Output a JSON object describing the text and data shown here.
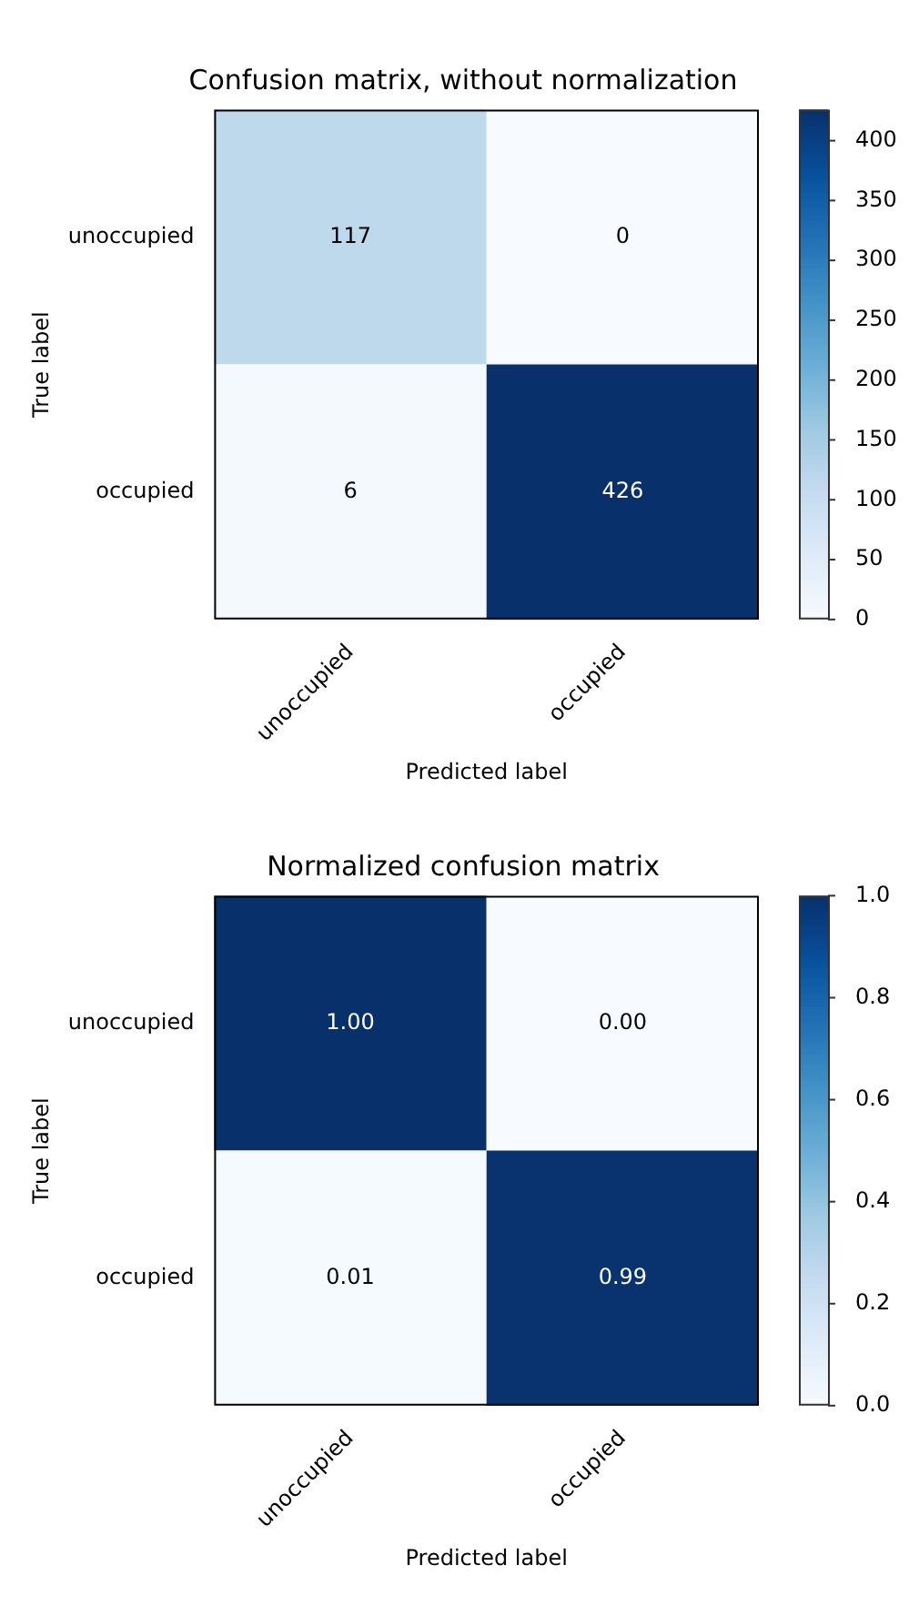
{
  "chart_data": [
    {
      "type": "heatmap",
      "title": "Confusion matrix, without normalization",
      "xlabel": "Predicted label",
      "ylabel": "True label",
      "categories": [
        "unoccupied",
        "occupied"
      ],
      "y_categories": [
        "unoccupied",
        "occupied"
      ],
      "cells": [
        [
          117,
          0
        ],
        [
          6,
          426
        ]
      ],
      "data_labels": true,
      "clim": [
        0,
        426
      ],
      "cticks": [
        0,
        50,
        100,
        150,
        200,
        250,
        300,
        350,
        400
      ]
    },
    {
      "type": "heatmap",
      "title": "Normalized confusion matrix",
      "xlabel": "Predicted label",
      "ylabel": "True label",
      "categories": [
        "unoccupied",
        "occupied"
      ],
      "y_categories": [
        "unoccupied",
        "occupied"
      ],
      "cells": [
        [
          1.0,
          0.0
        ],
        [
          0.01,
          0.99
        ]
      ],
      "cell_labels": [
        [
          "1.00",
          "0.00"
        ],
        [
          "0.01",
          "0.99"
        ]
      ],
      "clim": [
        0,
        1
      ],
      "cticks": [
        {
          "value": 0,
          "label": "0.0"
        },
        {
          "value": 0.2,
          "label": "0.2"
        },
        {
          "value": 0.4,
          "label": "0.4"
        },
        {
          "value": 0.6,
          "label": "0.6"
        },
        {
          "value": 0.8,
          "label": "0.8"
        },
        {
          "value": 1,
          "label": "1.0"
        }
      ]
    }
  ]
}
